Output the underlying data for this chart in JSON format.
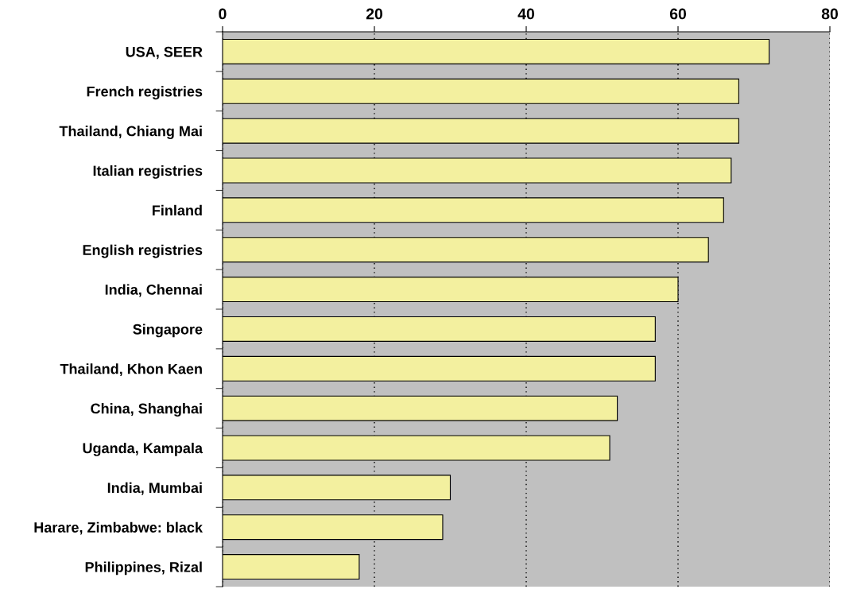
{
  "chart_data": {
    "type": "bar",
    "orientation": "horizontal",
    "categories": [
      "USA, SEER",
      "French registries",
      "Thailand, Chiang Mai",
      "Italian registries",
      "Finland",
      "English registries",
      "India, Chennai",
      "Singapore",
      "Thailand, Khon Kaen",
      "China, Shanghai",
      "Uganda, Kampala",
      "India, Mumbai",
      "Harare, Zimbabwe: black",
      "Philippines, Rizal"
    ],
    "values": [
      72,
      68,
      68,
      67,
      66,
      64,
      60,
      57,
      57,
      52,
      51,
      30,
      29,
      18
    ],
    "color": "#f3f09f",
    "xlim": [
      0,
      80
    ],
    "xticks": [
      0,
      20,
      40,
      60,
      80
    ],
    "grid": "x"
  }
}
